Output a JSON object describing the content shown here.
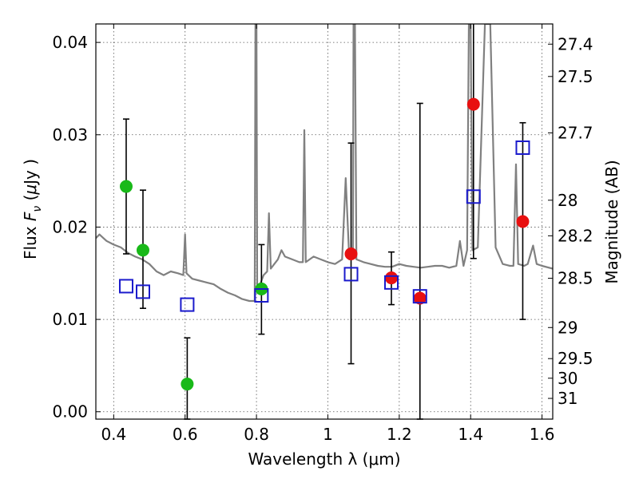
{
  "chart_data": {
    "type": "scatter",
    "xlabel": "Wavelength  λ (μm)",
    "ylabel": "Flux  F_ν  ( μJy )",
    "ylabel_parts": {
      "pre": "Flux ",
      "var": "F",
      "sub": "ν",
      "post": "  (",
      "mu": "μ",
      "unit": "Jy )"
    },
    "y2label": "Magnitude (AB)",
    "xlim": [
      0.35,
      1.63
    ],
    "ylim": [
      -0.0008,
      0.042
    ],
    "grid": true,
    "x_ticks": [
      0.4,
      0.6,
      0.8,
      1.0,
      1.2,
      1.4,
      1.6
    ],
    "x_tick_labels": [
      "0.4",
      "0.6",
      "0.8",
      "1",
      "1.2",
      "1.4",
      "1.6"
    ],
    "y_ticks": [
      0.0,
      0.01,
      0.02,
      0.03,
      0.04
    ],
    "y_tick_labels": [
      "0.00",
      "0.01",
      "0.02",
      "0.03",
      "0.04"
    ],
    "mag_ticks": [
      "27.4",
      "27.5",
      "27.7",
      "28",
      "28.2",
      "28.5",
      "29",
      "29.5",
      "30",
      "31"
    ],
    "colors": {
      "model": "#808080",
      "green": "#19b919",
      "red": "#e81010",
      "box": "#1a1acc",
      "errorbar": "#000000"
    },
    "series": [
      {
        "marker": "circle",
        "color": "green",
        "points": [
          {
            "x": 0.435,
            "y": 0.0244,
            "ylo": 0.0171,
            "yhi": 0.0317
          },
          {
            "x": 0.482,
            "y": 0.0175,
            "ylo": 0.0112,
            "yhi": 0.024
          },
          {
            "x": 0.606,
            "y": 0.003,
            "ylo": -0.0008,
            "yhi": 0.008
          },
          {
            "x": 0.814,
            "y": 0.0133,
            "ylo": 0.0084,
            "yhi": 0.0181
          }
        ]
      },
      {
        "marker": "circle",
        "color": "red",
        "points": [
          {
            "x": 1.065,
            "y": 0.0171,
            "ylo": 0.0052,
            "yhi": 0.0291
          },
          {
            "x": 1.178,
            "y": 0.0145,
            "ylo": 0.0116,
            "yhi": 0.0173
          },
          {
            "x": 1.258,
            "y": 0.0123,
            "ylo": -0.0008,
            "yhi": 0.0334
          },
          {
            "x": 1.408,
            "y": 0.0333,
            "ylo": 0.0166,
            "yhi": 0.046
          },
          {
            "x": 1.546,
            "y": 0.0206,
            "ylo": 0.01,
            "yhi": 0.0313
          }
        ]
      },
      {
        "marker": "open-square",
        "color": "box",
        "points": [
          {
            "x": 0.435,
            "y": 0.0136
          },
          {
            "x": 0.482,
            "y": 0.013
          },
          {
            "x": 0.606,
            "y": 0.0116
          },
          {
            "x": 0.814,
            "y": 0.0126
          },
          {
            "x": 1.065,
            "y": 0.0149
          },
          {
            "x": 1.178,
            "y": 0.014
          },
          {
            "x": 1.258,
            "y": 0.0125
          },
          {
            "x": 1.408,
            "y": 0.0233
          },
          {
            "x": 1.546,
            "y": 0.0286
          }
        ]
      }
    ],
    "model_spectrum": [
      [
        0.35,
        0.0188
      ],
      [
        0.36,
        0.0192
      ],
      [
        0.38,
        0.0185
      ],
      [
        0.4,
        0.0181
      ],
      [
        0.42,
        0.0178
      ],
      [
        0.44,
        0.0172
      ],
      [
        0.46,
        0.0168
      ],
      [
        0.48,
        0.0165
      ],
      [
        0.5,
        0.016
      ],
      [
        0.52,
        0.0152
      ],
      [
        0.54,
        0.0148
      ],
      [
        0.56,
        0.0152
      ],
      [
        0.58,
        0.015
      ],
      [
        0.595,
        0.0148
      ],
      [
        0.6,
        0.0192
      ],
      [
        0.604,
        0.015
      ],
      [
        0.62,
        0.0144
      ],
      [
        0.64,
        0.0142
      ],
      [
        0.66,
        0.014
      ],
      [
        0.68,
        0.0138
      ],
      [
        0.7,
        0.0133
      ],
      [
        0.72,
        0.0129
      ],
      [
        0.74,
        0.0126
      ],
      [
        0.76,
        0.0122
      ],
      [
        0.78,
        0.012
      ],
      [
        0.795,
        0.012
      ],
      [
        0.797,
        0.042
      ],
      [
        0.8,
        0.042
      ],
      [
        0.802,
        0.0135
      ],
      [
        0.81,
        0.0138
      ],
      [
        0.82,
        0.0148
      ],
      [
        0.83,
        0.0152
      ],
      [
        0.835,
        0.0215
      ],
      [
        0.84,
        0.0155
      ],
      [
        0.85,
        0.016
      ],
      [
        0.86,
        0.0165
      ],
      [
        0.87,
        0.0175
      ],
      [
        0.88,
        0.0168
      ],
      [
        0.9,
        0.0165
      ],
      [
        0.92,
        0.0162
      ],
      [
        0.93,
        0.0162
      ],
      [
        0.934,
        0.0305
      ],
      [
        0.938,
        0.0162
      ],
      [
        0.96,
        0.0168
      ],
      [
        0.98,
        0.0165
      ],
      [
        1.0,
        0.0162
      ],
      [
        1.02,
        0.016
      ],
      [
        1.04,
        0.0165
      ],
      [
        1.05,
        0.0253
      ],
      [
        1.06,
        0.0165
      ],
      [
        1.07,
        0.0168
      ],
      [
        1.072,
        0.042
      ],
      [
        1.076,
        0.042
      ],
      [
        1.08,
        0.0165
      ],
      [
        1.1,
        0.0162
      ],
      [
        1.12,
        0.016
      ],
      [
        1.14,
        0.0158
      ],
      [
        1.16,
        0.0157
      ],
      [
        1.18,
        0.0157
      ],
      [
        1.2,
        0.016
      ],
      [
        1.22,
        0.0158
      ],
      [
        1.24,
        0.0157
      ],
      [
        1.26,
        0.0156
      ],
      [
        1.28,
        0.0157
      ],
      [
        1.3,
        0.0158
      ],
      [
        1.32,
        0.0158
      ],
      [
        1.34,
        0.0156
      ],
      [
        1.36,
        0.0158
      ],
      [
        1.37,
        0.0185
      ],
      [
        1.38,
        0.0158
      ],
      [
        1.39,
        0.0175
      ],
      [
        1.395,
        0.042
      ],
      [
        1.4,
        0.042
      ],
      [
        1.405,
        0.0175
      ],
      [
        1.42,
        0.0178
      ],
      [
        1.44,
        0.042
      ],
      [
        1.455,
        0.042
      ],
      [
        1.47,
        0.0178
      ],
      [
        1.49,
        0.016
      ],
      [
        1.51,
        0.0158
      ],
      [
        1.52,
        0.0158
      ],
      [
        1.527,
        0.0268
      ],
      [
        1.533,
        0.016
      ],
      [
        1.55,
        0.0158
      ],
      [
        1.56,
        0.016
      ],
      [
        1.575,
        0.018
      ],
      [
        1.585,
        0.016
      ],
      [
        1.6,
        0.0158
      ],
      [
        1.63,
        0.0155
      ]
    ]
  }
}
